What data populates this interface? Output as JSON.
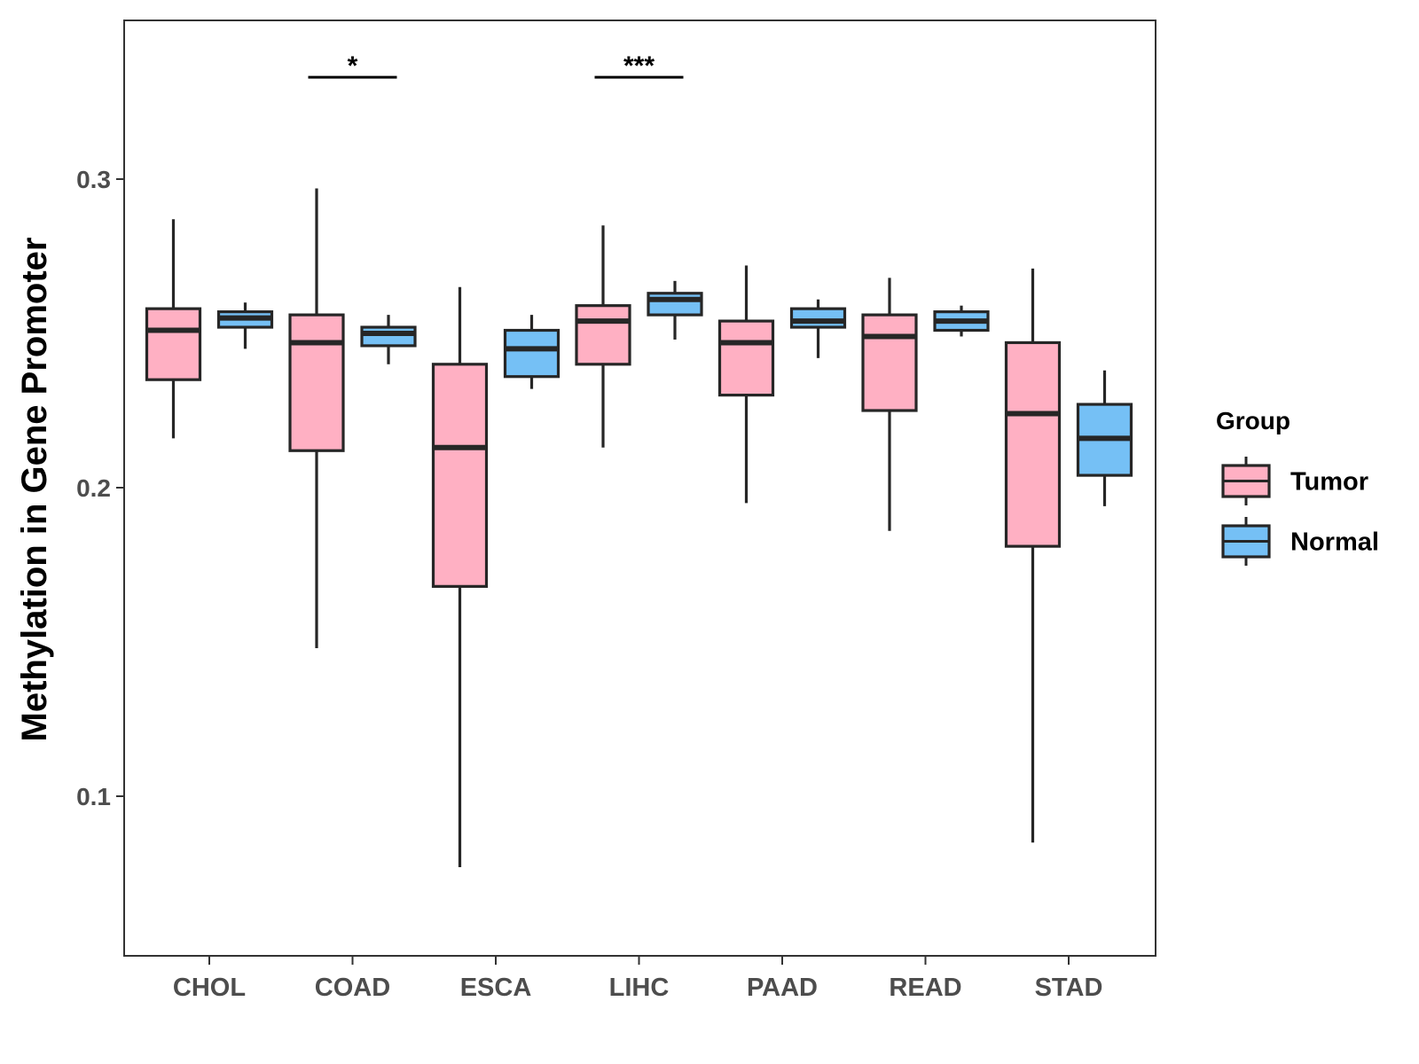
{
  "chart_data": {
    "type": "boxplot",
    "ylabel": "Methylation in Gene Promoter",
    "xlabel": "",
    "ylim": [
      0.05,
      0.35
    ],
    "yticks": [
      0.1,
      0.2,
      0.3
    ],
    "ytick_labels": [
      "0.1",
      "0.2",
      "0.3"
    ],
    "grid": false,
    "legend": {
      "title": "Group",
      "position": "right",
      "entries": [
        "Tumor",
        "Normal"
      ]
    },
    "categories": [
      "CHOL",
      "COAD",
      "ESCA",
      "LIHC",
      "PAAD",
      "READ",
      "STAD"
    ],
    "series": [
      {
        "name": "Tumor",
        "color": "#FFB0C3",
        "boxes": [
          {
            "min": 0.216,
            "q1": 0.235,
            "median": 0.251,
            "q3": 0.258,
            "max": 0.287
          },
          {
            "min": 0.148,
            "q1": 0.212,
            "median": 0.247,
            "q3": 0.256,
            "max": 0.297
          },
          {
            "min": 0.077,
            "q1": 0.168,
            "median": 0.213,
            "q3": 0.24,
            "max": 0.265
          },
          {
            "min": 0.213,
            "q1": 0.24,
            "median": 0.254,
            "q3": 0.259,
            "max": 0.285
          },
          {
            "min": 0.195,
            "q1": 0.23,
            "median": 0.247,
            "q3": 0.254,
            "max": 0.272
          },
          {
            "min": 0.186,
            "q1": 0.225,
            "median": 0.249,
            "q3": 0.256,
            "max": 0.268
          },
          {
            "min": 0.085,
            "q1": 0.181,
            "median": 0.224,
            "q3": 0.247,
            "max": 0.271
          }
        ]
      },
      {
        "name": "Normal",
        "color": "#75C0F5",
        "boxes": [
          {
            "min": 0.245,
            "q1": 0.252,
            "median": 0.255,
            "q3": 0.257,
            "max": 0.26
          },
          {
            "min": 0.24,
            "q1": 0.246,
            "median": 0.25,
            "q3": 0.252,
            "max": 0.256
          },
          {
            "min": 0.232,
            "q1": 0.236,
            "median": 0.245,
            "q3": 0.251,
            "max": 0.256
          },
          {
            "min": 0.248,
            "q1": 0.256,
            "median": 0.261,
            "q3": 0.263,
            "max": 0.267
          },
          {
            "min": 0.242,
            "q1": 0.252,
            "median": 0.254,
            "q3": 0.258,
            "max": 0.261
          },
          {
            "min": 0.249,
            "q1": 0.251,
            "median": 0.254,
            "q3": 0.257,
            "max": 0.259
          },
          {
            "min": 0.194,
            "q1": 0.204,
            "median": 0.216,
            "q3": 0.227,
            "max": 0.238
          }
        ]
      }
    ],
    "annotations": [
      {
        "category": "COAD",
        "label": "*",
        "y": 0.333
      },
      {
        "category": "LIHC",
        "label": "***",
        "y": 0.333
      }
    ]
  }
}
